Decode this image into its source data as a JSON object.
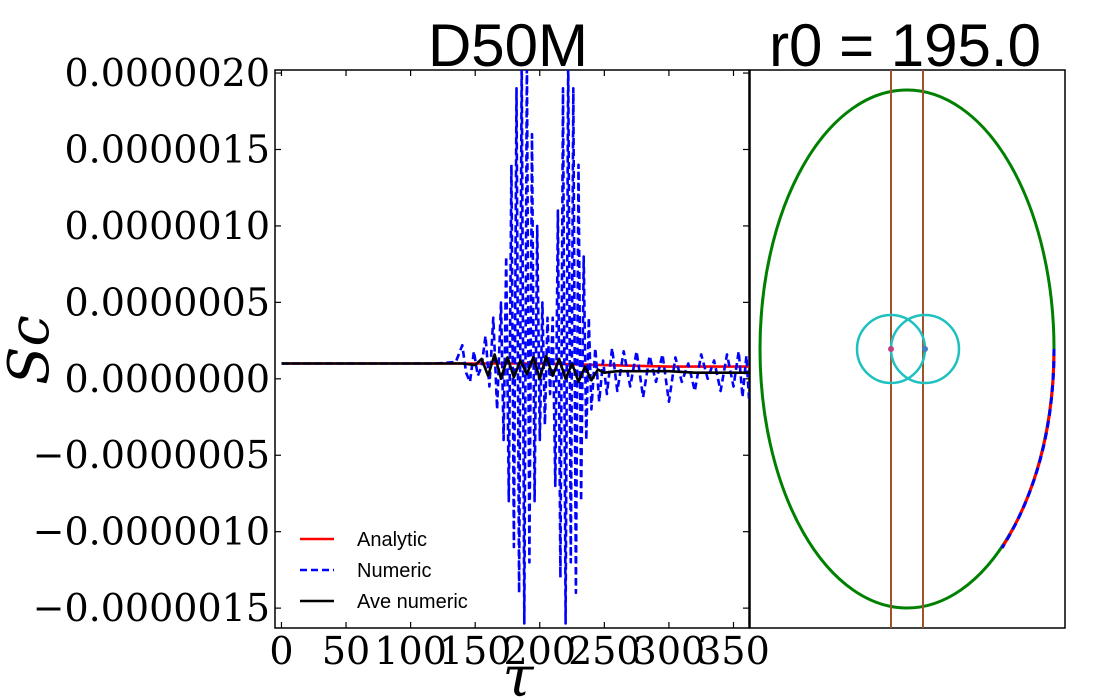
{
  "chart_data": [
    {
      "type": "line",
      "title": "D50M",
      "xlabel": "τ",
      "ylabel": "Sc",
      "xlim": [
        -5,
        362
      ],
      "ylim": [
        -1.63e-06,
        2.02e-06
      ],
      "x_ticks": [
        0,
        50,
        100,
        150,
        200,
        250,
        300,
        350
      ],
      "x_tick_labels": [
        "0",
        "50",
        "100",
        "150",
        "200",
        "250",
        "300",
        "350"
      ],
      "y_ticks": [
        2e-06,
        1.5e-06,
        1e-06,
        5e-07,
        0.0,
        -5e-07,
        -1e-06,
        -1.5e-06
      ],
      "y_tick_labels": [
        "0.0000020",
        "0.0000015",
        "0.0000010",
        "0.0000005",
        "0.0000000",
        "−0.0000005",
        "−0.0000010",
        "−0.0000015"
      ],
      "legend": {
        "position": "lower-left"
      },
      "series": [
        {
          "name": "Analytic",
          "color": "#ff0000",
          "style": "solid",
          "x": [
            0,
            100,
            150,
            200,
            250,
            300,
            362
          ],
          "y": [
            1e-07,
            1e-07,
            1e-07,
            1e-07,
            9e-08,
            8e-08,
            8e-08
          ]
        },
        {
          "name": "Numeric",
          "color": "#0000ff",
          "style": "dashed",
          "x": [
            0,
            120,
            135,
            140,
            143,
            146,
            149,
            152,
            155,
            158,
            161,
            164,
            167,
            170,
            172,
            174,
            176,
            178,
            180,
            182,
            184,
            186,
            188,
            190,
            192,
            194,
            196,
            198,
            200,
            202,
            204,
            206,
            208,
            210,
            212,
            214,
            216,
            218,
            220,
            222,
            224,
            226,
            228,
            230,
            232,
            234,
            236,
            238,
            240,
            243,
            246,
            249,
            252,
            256,
            260,
            265,
            270,
            275,
            280,
            285,
            290,
            295,
            300,
            305,
            310,
            315,
            320,
            325,
            330,
            335,
            340,
            345,
            350,
            354,
            357,
            360,
            362
          ],
          "y": [
            1e-07,
            1e-07,
            1.1e-07,
            2.2e-07,
            4e-08,
            -2e-08,
            1.8e-07,
            2e-08,
            8e-08,
            2.8e-07,
            -5e-08,
            4e-07,
            -2e-07,
            5e-07,
            -4e-07,
            8e-07,
            -8e-07,
            1.4e-06,
            -1.1e-06,
            1.9e-06,
            -1.4e-06,
            2.1e-06,
            -1.6e-06,
            2.1e-06,
            -1.2e-06,
            1.6e-06,
            -8e-07,
            1e-06,
            -4e-07,
            5e-07,
            -3e-07,
            4e-07,
            -1e-07,
            4e-07,
            -7e-07,
            1.1e-06,
            -1.3e-06,
            1.9e-06,
            -1.6e-06,
            2.1e-06,
            -1.2e-06,
            1.9e-06,
            -1.4e-06,
            1.4e-06,
            -8e-07,
            8e-07,
            -4e-07,
            4e-07,
            -2e-07,
            2e-07,
            -1.5e-07,
            1.2e-07,
            -1e-07,
            2e-07,
            -8e-08,
            1.8e-07,
            -5e-08,
            1.8e-07,
            -1.2e-07,
            1.5e-07,
            -2e-08,
            1.6e-07,
            -1.5e-07,
            1.4e-07,
            -2e-08,
            1e-07,
            -8e-08,
            1.6e-07,
            0.0,
            1.2e-07,
            -8e-08,
            1.6e-07,
            -5e-08,
            1.8e-07,
            -1.2e-07,
            1.5e-07,
            -1.3e-07
          ]
        },
        {
          "name": "Ave numeric",
          "color": "#000000",
          "style": "solid",
          "x": [
            0,
            100,
            130,
            140,
            150,
            155,
            160,
            165,
            170,
            175,
            180,
            185,
            190,
            195,
            200,
            205,
            210,
            215,
            220,
            225,
            230,
            235,
            240,
            245,
            250,
            260,
            280,
            300,
            320,
            340,
            362
          ],
          "y": [
            1e-07,
            1e-07,
            1e-07,
            1e-07,
            9e-08,
            1.3e-07,
            2e-08,
            1.6e-07,
            0.0,
            1.4e-07,
            1e-08,
            1.2e-07,
            3e-08,
            1.4e-07,
            0.0,
            1.5e-07,
            2e-08,
            1.3e-07,
            0.0,
            1e-07,
            -2e-08,
            8e-08,
            -1e-08,
            6e-08,
            4e-08,
            5e-08,
            5e-08,
            5e-08,
            4e-08,
            4e-08,
            4e-08
          ]
        }
      ]
    },
    {
      "type": "scatter",
      "title": "r0 = 195.0",
      "elements": [
        {
          "name": "outer-ellipse",
          "color": "#008000"
        },
        {
          "name": "left-circle",
          "color": "#20c0c0"
        },
        {
          "name": "right-circle",
          "color": "#20c0c0"
        },
        {
          "name": "left-vertical-line",
          "color": "#a0522d"
        },
        {
          "name": "right-vertical-line",
          "color": "#a0522d"
        },
        {
          "name": "trajectory-red",
          "color": "#ff0000"
        },
        {
          "name": "trajectory-blue",
          "color": "#0000ff"
        }
      ]
    }
  ]
}
